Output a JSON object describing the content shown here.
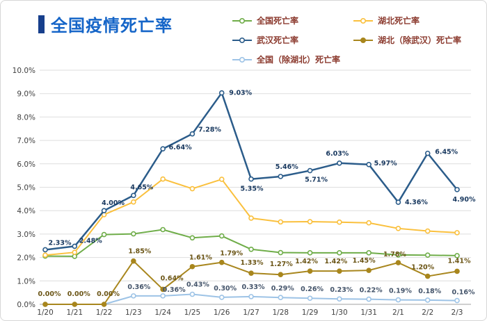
{
  "page": {
    "title": "全国疫情死亡率",
    "title_color": "#1565c8",
    "accent_bar_color": "#173f8c",
    "legend_text_color": "#8b3a2e",
    "axis_text_color": "#404040",
    "grid_color": "#dedede"
  },
  "chart_data": {
    "type": "line",
    "title": "全国疫情死亡率",
    "x": [
      "1/20",
      "1/21",
      "1/22",
      "1/23",
      "1/24",
      "1/25",
      "1/26",
      "1/27",
      "1/28",
      "1/29",
      "1/30",
      "1/31",
      "2/1",
      "2/2",
      "2/3"
    ],
    "ylim": [
      0,
      10
    ],
    "ytick_labels": [
      "0.0%",
      "1.0%",
      "2.0%",
      "3.0%",
      "4.0%",
      "5.0%",
      "6.0%",
      "7.0%",
      "8.0%",
      "9.0%",
      "10.0%"
    ],
    "grid": true,
    "legend_position": "top",
    "series": [
      {
        "name": "全国死亡率",
        "color": "#6fad49",
        "marker": "donut",
        "values": [
          2.06,
          2.05,
          2.98,
          3.01,
          3.19,
          2.84,
          2.92,
          2.35,
          2.21,
          2.2,
          2.2,
          2.2,
          2.11,
          2.1,
          2.08
        ],
        "labels": null
      },
      {
        "name": "湖北死亡率",
        "color": "#fac03d",
        "marker": "donut",
        "values": [
          2.1,
          2.22,
          3.83,
          4.37,
          5.35,
          4.94,
          5.34,
          3.68,
          3.52,
          3.53,
          3.51,
          3.48,
          3.24,
          3.13,
          3.06
        ],
        "labels": null
      },
      {
        "name": "武汉死亡率",
        "color": "#2b5c8a",
        "marker": "donut",
        "values": [
          2.33,
          2.48,
          4.0,
          4.65,
          6.64,
          7.28,
          9.03,
          5.35,
          5.46,
          5.71,
          6.03,
          5.97,
          4.36,
          6.45,
          4.9
        ],
        "labels": [
          "2.33%",
          "2.48%",
          "4.00%",
          "4.65%",
          "6.64%",
          "7.28%",
          "9.03%",
          "5.35%",
          "5.46%",
          "5.71%",
          "6.03%",
          "5.97%",
          "4.36%",
          "6.45%",
          "4.90%"
        ]
      },
      {
        "name": "湖北（除武汉）死亡率",
        "color": "#a8861d",
        "marker": "dot",
        "values": [
          0.0,
          0.0,
          0.0,
          1.85,
          0.64,
          1.61,
          1.79,
          1.33,
          1.27,
          1.42,
          1.42,
          1.45,
          1.78,
          1.2,
          1.41
        ],
        "labels": [
          "0.00%",
          "0.00%",
          "0.00%",
          "1.85%",
          "0.64%",
          "1.61%",
          "1.79%",
          "1.33%",
          "1.27%",
          "1.42%",
          "1.42%",
          "1.45%",
          "1.78%",
          "1.20%",
          "1.41%"
        ]
      },
      {
        "name": "全国（除湖北）死亡率",
        "color": "#9dc3e6",
        "marker": "donut",
        "values": [
          0.0,
          0.0,
          0.0,
          0.36,
          0.36,
          0.43,
          0.3,
          0.33,
          0.29,
          0.26,
          0.23,
          0.22,
          0.19,
          0.18,
          0.16
        ],
        "labels": [
          "",
          "",
          "",
          "0.36%",
          "0.36%",
          "0.43%",
          "0.30%",
          "0.33%",
          "0.29%",
          "0.26%",
          "0.23%",
          "0.22%",
          "0.19%",
          "0.18%",
          "0.16%"
        ]
      }
    ]
  }
}
